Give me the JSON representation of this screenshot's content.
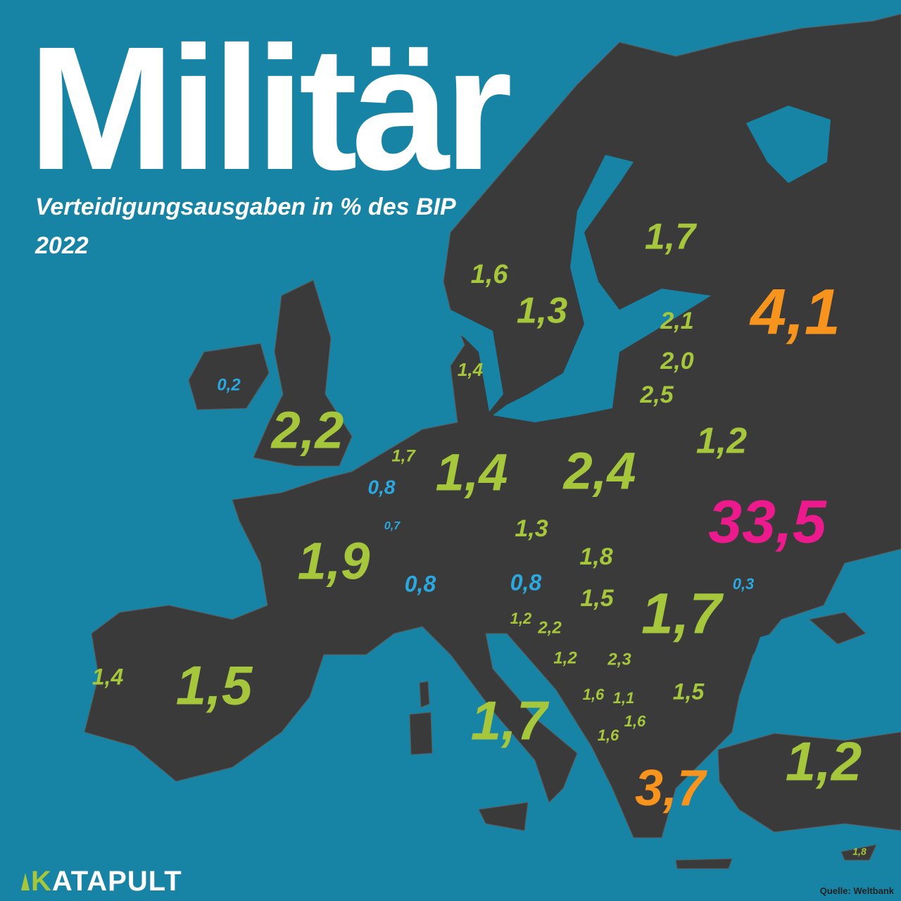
{
  "title": "Militär",
  "subtitle": "Verteidigungsausgaben in % des BIP",
  "year": "2022",
  "labels": [
    {
      "text": "1,7",
      "color": "#a6c63b"
    },
    {
      "text": "1,6",
      "color": "#a6c63b"
    },
    {
      "text": "1,3",
      "color": "#a6c63b"
    },
    {
      "text": "4,1",
      "color": "#f7941d"
    },
    {
      "text": "2,1",
      "color": "#a6c63b"
    },
    {
      "text": "2,0",
      "color": "#a6c63b"
    },
    {
      "text": "2,5",
      "color": "#a6c63b"
    },
    {
      "text": "1,4",
      "color": "#a6c63b"
    },
    {
      "text": "0,2",
      "color": "#29a9e0"
    },
    {
      "text": "2,2",
      "color": "#a6c63b"
    },
    {
      "text": "1,7",
      "color": "#a6c63b"
    },
    {
      "text": "1,2",
      "color": "#a6c63b"
    },
    {
      "text": "1,4",
      "color": "#a6c63b"
    },
    {
      "text": "2,4",
      "color": "#a6c63b"
    },
    {
      "text": "0,8",
      "color": "#29a9e0"
    },
    {
      "text": "0,7",
      "color": "#29a9e0"
    },
    {
      "text": "33,5",
      "color": "#ec1a8d"
    },
    {
      "text": "1,3",
      "color": "#a6c63b"
    },
    {
      "text": "1,9",
      "color": "#a6c63b"
    },
    {
      "text": "1,8",
      "color": "#a6c63b"
    },
    {
      "text": "0,8",
      "color": "#29a9e0"
    },
    {
      "text": "0,8",
      "color": "#29a9e0"
    },
    {
      "text": "0,3",
      "color": "#29a9e0"
    },
    {
      "text": "1,5",
      "color": "#a6c63b"
    },
    {
      "text": "1,7",
      "color": "#a6c63b"
    },
    {
      "text": "1,2",
      "color": "#a6c63b"
    },
    {
      "text": "2,2",
      "color": "#a6c63b"
    },
    {
      "text": "1,2",
      "color": "#a6c63b"
    },
    {
      "text": "2,3",
      "color": "#a6c63b"
    },
    {
      "text": "1,4",
      "color": "#a6c63b"
    },
    {
      "text": "1,5",
      "color": "#a6c63b"
    },
    {
      "text": "1,5",
      "color": "#a6c63b"
    },
    {
      "text": "1,6",
      "color": "#a6c63b"
    },
    {
      "text": "1,1",
      "color": "#a6c63b"
    },
    {
      "text": "1,6",
      "color": "#a6c63b"
    },
    {
      "text": "1,6",
      "color": "#a6c63b"
    },
    {
      "text": "1,7",
      "color": "#a6c63b"
    },
    {
      "text": "1,2",
      "color": "#a6c63b"
    },
    {
      "text": "3,7",
      "color": "#f7941d"
    },
    {
      "text": "1,8",
      "color": "#a6c63b"
    }
  ],
  "brand": "KATAPULT",
  "source": "Quelle: Weltbank"
}
